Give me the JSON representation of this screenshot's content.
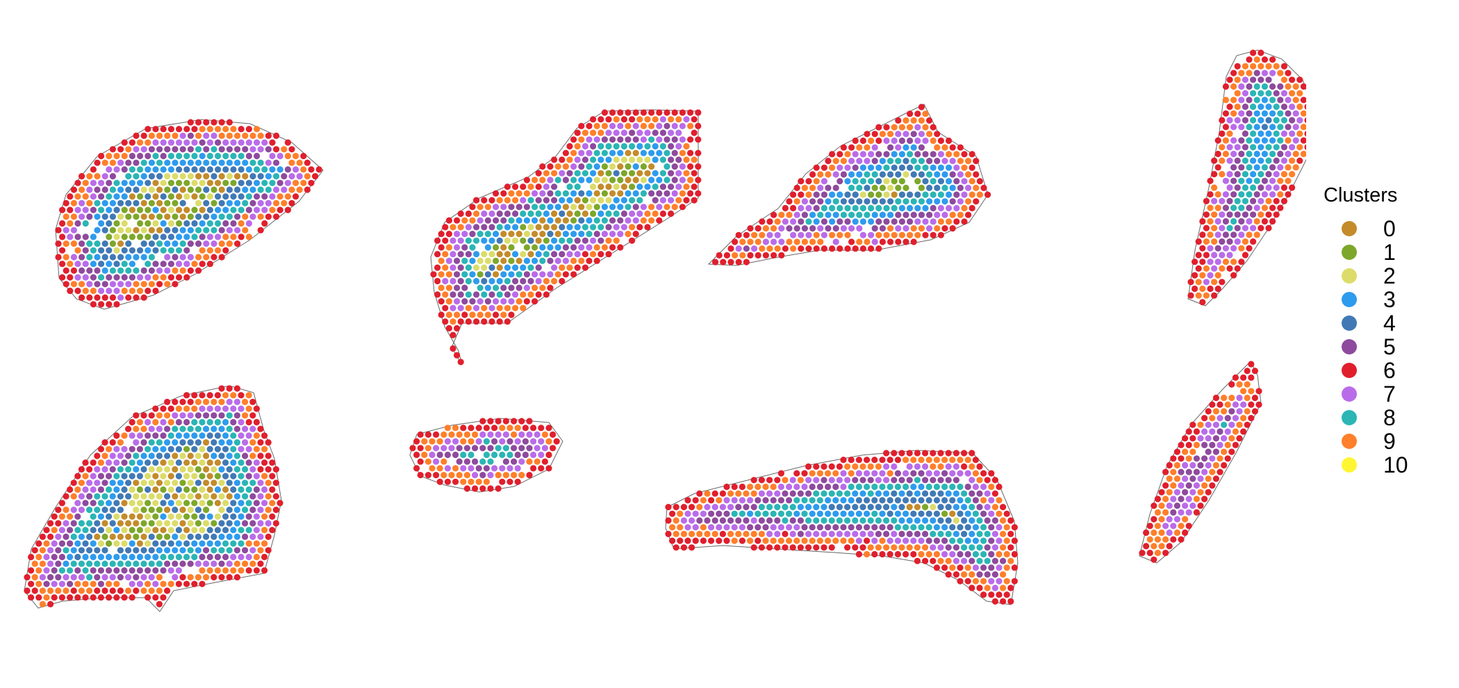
{
  "chart_data": {
    "type": "scatter",
    "title": "",
    "xlabel": "",
    "ylabel": "",
    "grid": false,
    "axes": false,
    "legend_placement": "right",
    "legend_title": "Clusters",
    "clusters": [
      {
        "name": "0",
        "color": "#C48B2B"
      },
      {
        "name": "1",
        "color": "#7DA72A"
      },
      {
        "name": "2",
        "color": "#DCDC6A"
      },
      {
        "name": "3",
        "color": "#2E9BEE"
      },
      {
        "name": "4",
        "color": "#4179B5"
      },
      {
        "name": "5",
        "color": "#8E4A9C"
      },
      {
        "name": "6",
        "color": "#E01F2D"
      },
      {
        "name": "7",
        "color": "#B96CE9"
      },
      {
        "name": "8",
        "color": "#2BB5B5"
      },
      {
        "name": "9",
        "color": "#FF7F2A"
      },
      {
        "name": "10",
        "color": "#FFF533"
      }
    ],
    "panels": 8
  }
}
